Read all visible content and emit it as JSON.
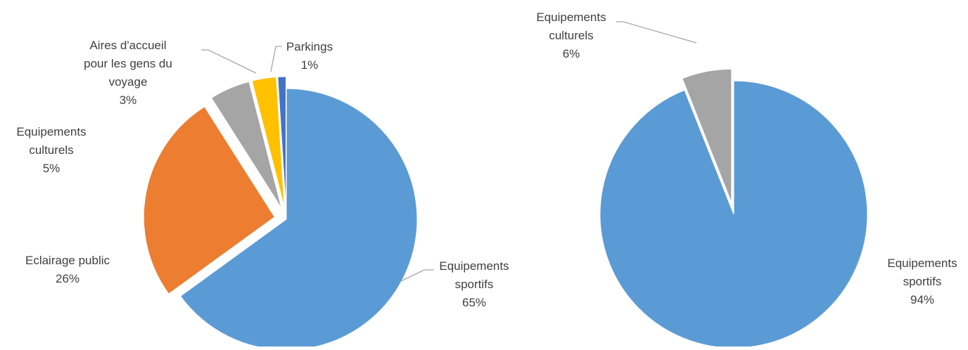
{
  "chart_data": [
    {
      "type": "pie",
      "title": "",
      "slices": [
        {
          "label": "Equipements sportifs",
          "label_lines": [
            "Equipements",
            "sportifs"
          ],
          "value": 65,
          "pct_label": "65%",
          "color": "#5b9bd5"
        },
        {
          "label": "Eclairage public",
          "label_lines": [
            "Eclairage public"
          ],
          "value": 26,
          "pct_label": "26%",
          "color": "#ed7d31"
        },
        {
          "label": "Equipements culturels",
          "label_lines": [
            "Equipements",
            "culturels"
          ],
          "value": 5,
          "pct_label": "5%",
          "color": "#a5a5a5"
        },
        {
          "label": "Aires d'accueil pour les gens du voyage",
          "label_lines": [
            "Aires d'accueil",
            "pour les gens du",
            "voyage"
          ],
          "value": 3,
          "pct_label": "3%",
          "color": "#ffc000"
        },
        {
          "label": "Parkings",
          "label_lines": [
            "Parkings"
          ],
          "value": 1,
          "pct_label": "1%",
          "color": "#4472c4"
        }
      ],
      "legend": "none",
      "data_labels": "outside-with-leader-lines"
    },
    {
      "type": "pie",
      "title": "",
      "slices": [
        {
          "label": "Equipements sportifs",
          "label_lines": [
            "Equipements",
            "sportifs"
          ],
          "value": 94,
          "pct_label": "94%",
          "color": "#5b9bd5"
        },
        {
          "label": "Equipements culturels",
          "label_lines": [
            "Equipements",
            "culturels"
          ],
          "value": 6,
          "pct_label": "6%",
          "color": "#a5a5a5"
        }
      ],
      "legend": "none",
      "data_labels": "outside-with-leader-lines"
    }
  ]
}
